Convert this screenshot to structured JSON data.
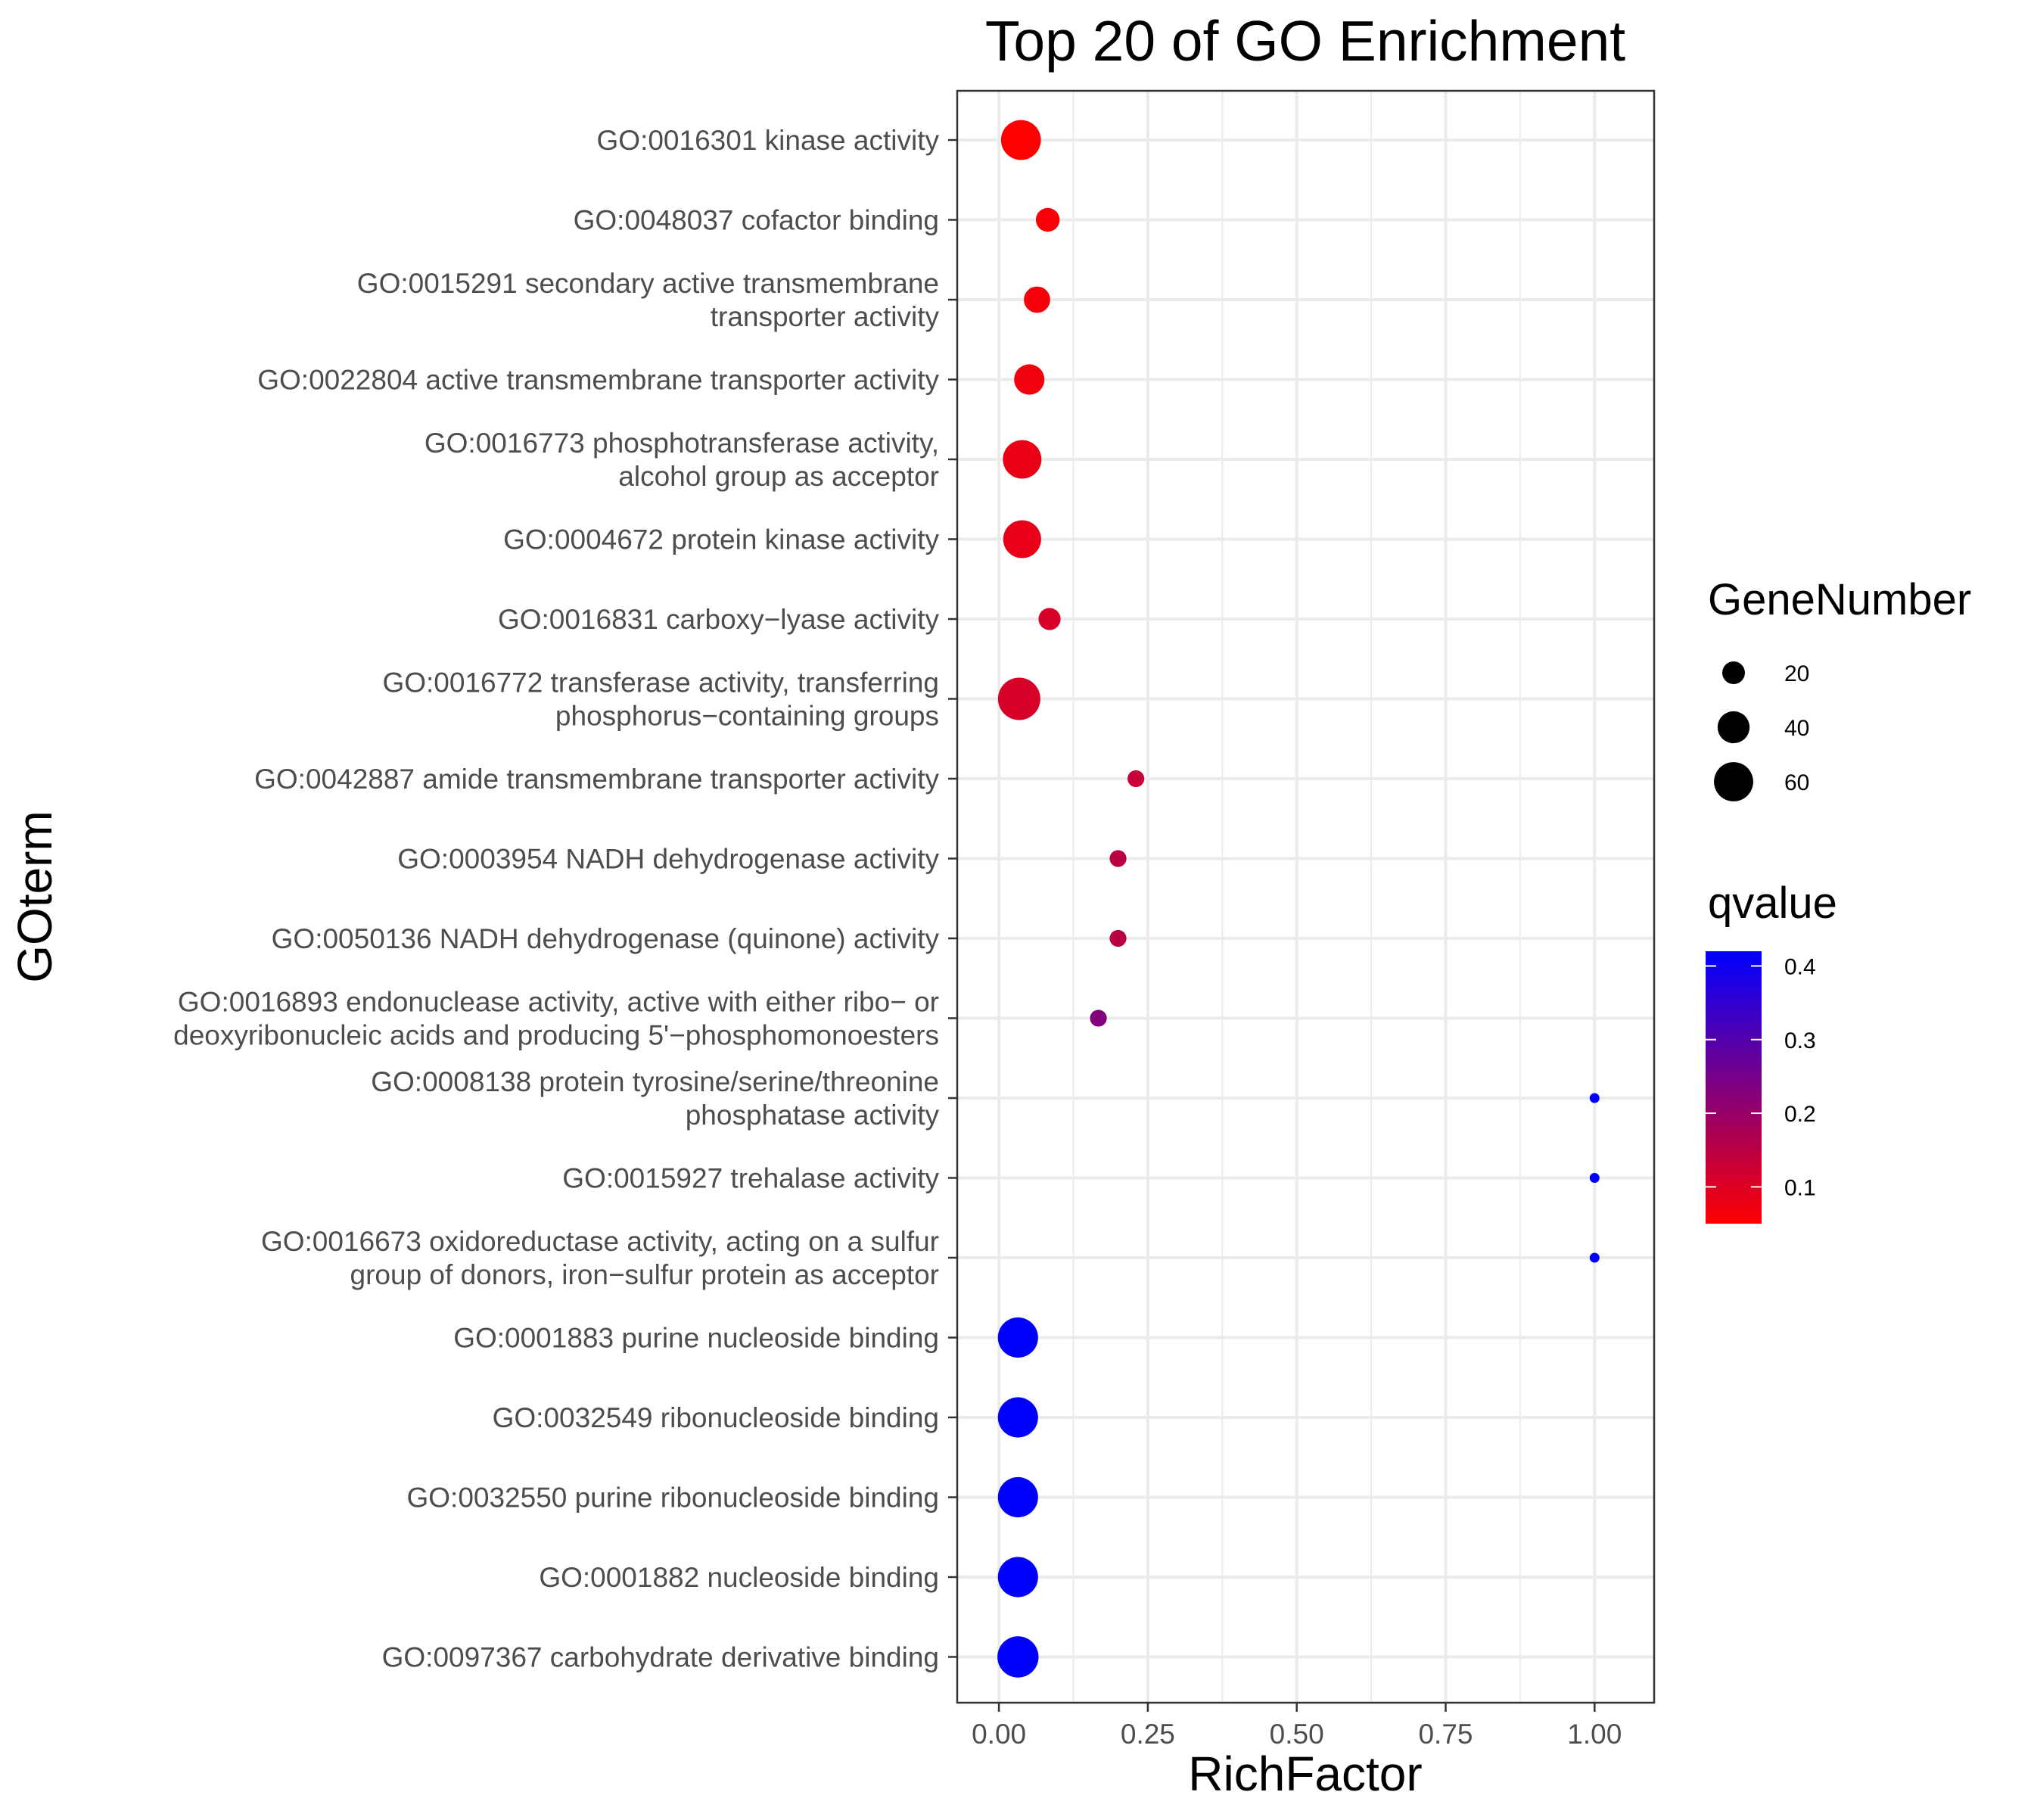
{
  "chart_data": {
    "type": "scatter",
    "title": "Top 20 of GO Enrichment",
    "xlabel": "RichFactor",
    "ylabel": "GOterm",
    "xlim": [
      -0.07,
      1.1
    ],
    "x_ticks": [
      "0.00",
      "0.25",
      "0.50",
      "0.75",
      "1.00"
    ],
    "grid": true,
    "legend_position": "right",
    "terms": [
      {
        "label": [
          "GO:0016301 kinase activity"
        ],
        "rich_factor": 0.037,
        "gene_number": 62,
        "qvalue": 0.05
      },
      {
        "label": [
          "GO:0048037 cofactor binding"
        ],
        "rich_factor": 0.082,
        "gene_number": 22,
        "qvalue": 0.06
      },
      {
        "label": [
          "GO:0015291 secondary active transmembrane",
          "transporter activity"
        ],
        "rich_factor": 0.064,
        "gene_number": 27,
        "qvalue": 0.065
      },
      {
        "label": [
          "GO:0022804 active transmembrane transporter activity"
        ],
        "rich_factor": 0.051,
        "gene_number": 36,
        "qvalue": 0.07
      },
      {
        "label": [
          "GO:0016773 phosphotransferase activity,",
          "alcohol group as acceptor"
        ],
        "rich_factor": 0.039,
        "gene_number": 58,
        "qvalue": 0.08
      },
      {
        "label": [
          "GO:0004672 protein kinase activity"
        ],
        "rich_factor": 0.039,
        "gene_number": 56,
        "qvalue": 0.085
      },
      {
        "label": [
          "GO:0016831 carboxy−lyase activity"
        ],
        "rich_factor": 0.085,
        "gene_number": 19,
        "qvalue": 0.11
      },
      {
        "label": [
          "GO:0016772 transferase activity, transferring",
          "phosphorus−containing groups"
        ],
        "rich_factor": 0.034,
        "gene_number": 70,
        "qvalue": 0.11
      },
      {
        "label": [
          "GO:0042887 amide transmembrane transporter activity"
        ],
        "rich_factor": 0.23,
        "gene_number": 11,
        "qvalue": 0.13
      },
      {
        "label": [
          "GO:0003954 NADH dehydrogenase activity"
        ],
        "rich_factor": 0.2,
        "gene_number": 11,
        "qvalue": 0.15
      },
      {
        "label": [
          "GO:0050136 NADH dehydrogenase (quinone) activity"
        ],
        "rich_factor": 0.2,
        "gene_number": 11,
        "qvalue": 0.15
      },
      {
        "label": [
          "GO:0016893 endonuclease activity, active with either ribo− or",
          "deoxyribonucleic acids and producing 5'−phosphomonoesters"
        ],
        "rich_factor": 0.167,
        "gene_number": 11,
        "qvalue": 0.23
      },
      {
        "label": [
          "GO:0008138 protein tyrosine/serine/threonine",
          "phosphatase activity"
        ],
        "rich_factor": 1.0,
        "gene_number": 1,
        "qvalue": 0.42
      },
      {
        "label": [
          "GO:0015927 trehalase activity"
        ],
        "rich_factor": 1.0,
        "gene_number": 1,
        "qvalue": 0.42
      },
      {
        "label": [
          "GO:0016673 oxidoreductase activity, acting on a sulfur",
          "group of donors, iron−sulfur protein as acceptor"
        ],
        "rich_factor": 1.0,
        "gene_number": 1,
        "qvalue": 0.42
      },
      {
        "label": [
          "GO:0001883 purine nucleoside binding"
        ],
        "rich_factor": 0.032,
        "gene_number": 63,
        "qvalue": 0.42
      },
      {
        "label": [
          "GO:0032549 ribonucleoside binding"
        ],
        "rich_factor": 0.032,
        "gene_number": 63,
        "qvalue": 0.42
      },
      {
        "label": [
          "GO:0032550 purine ribonucleoside binding"
        ],
        "rich_factor": 0.032,
        "gene_number": 63,
        "qvalue": 0.42
      },
      {
        "label": [
          "GO:0001882 nucleoside binding"
        ],
        "rich_factor": 0.032,
        "gene_number": 63,
        "qvalue": 0.42
      },
      {
        "label": [
          "GO:0097367 carbohydrate derivative binding"
        ],
        "rich_factor": 0.032,
        "gene_number": 66,
        "qvalue": 0.42
      }
    ],
    "size_legend": {
      "title": "GeneNumber",
      "values": [
        20,
        40,
        60
      ],
      "labels": [
        "20",
        "40",
        "60"
      ]
    },
    "color_legend": {
      "title": "qvalue",
      "range": [
        0.05,
        0.42
      ],
      "ticks": [
        0.1,
        0.2,
        0.3,
        0.4
      ],
      "labels": [
        "0.1",
        "0.2",
        "0.3",
        "0.4"
      ],
      "low_color": "#FF0000",
      "high_color": "#0000FF"
    },
    "colors": {
      "grid": "#EBEBEB",
      "panel_border": "#333333",
      "tick_text": "#4D4D4D"
    }
  }
}
